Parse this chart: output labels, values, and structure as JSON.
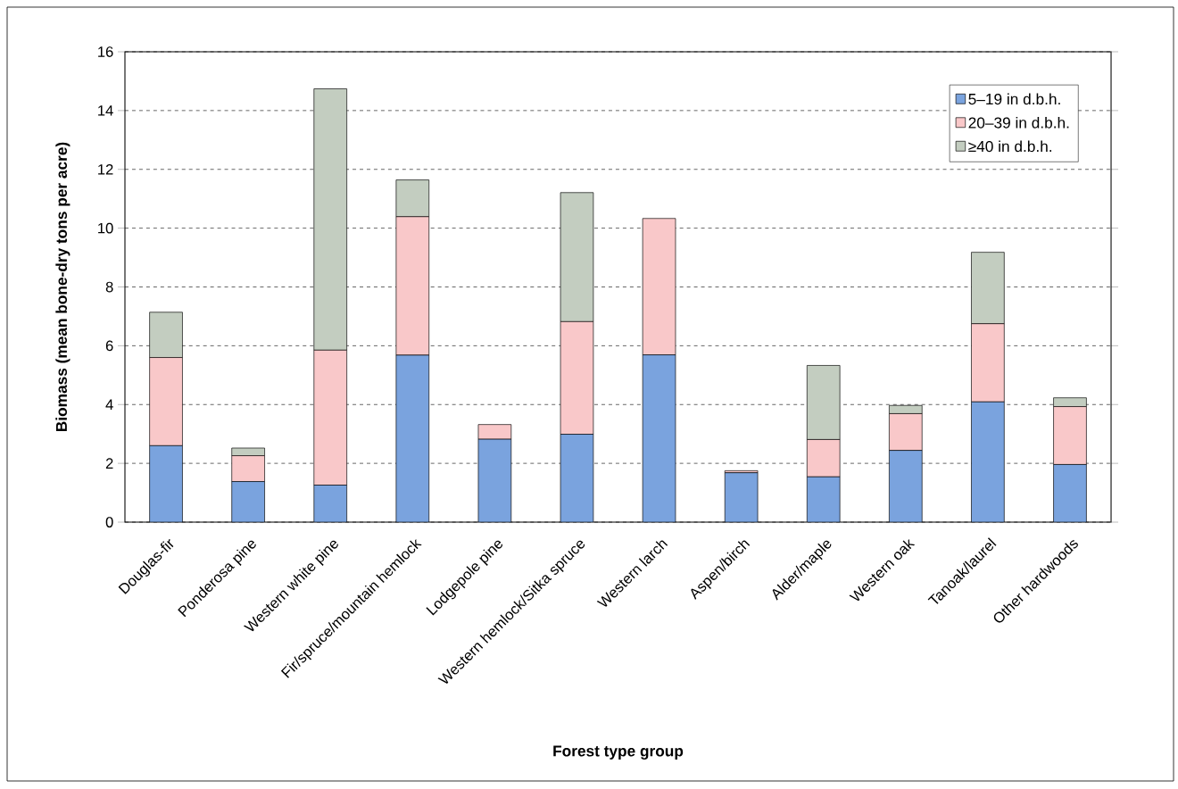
{
  "chart_data": {
    "type": "bar",
    "stacked": true,
    "xlabel": "Forest type group",
    "ylabel": "Biomass (mean bone-dry tons per acre)",
    "categories": [
      "Douglas-fir",
      "Ponderosa pine",
      "Western white pine",
      "Fir/spruce/mountain hemlock",
      "Lodgepole pine",
      "Western hemlock/Sitka spruce",
      "Western larch",
      "Aspen/birch",
      "Alder/maple",
      "Western oak",
      "Tanoak/laurel",
      "Other hardwoods"
    ],
    "series": [
      {
        "name": "5–19 in d.b.h.",
        "color": "#7aa3de",
        "values": [
          2.6,
          1.38,
          1.26,
          5.68,
          2.82,
          2.99,
          5.69,
          1.68,
          1.54,
          2.44,
          4.09,
          1.96
        ]
      },
      {
        "name": "20–39 in d.b.h.",
        "color": "#f9c8c9",
        "values": [
          3.0,
          0.88,
          4.59,
          4.71,
          0.5,
          3.83,
          4.64,
          0.07,
          1.27,
          1.25,
          2.66,
          1.97
        ]
      },
      {
        "name": "≥40 in d.b.h.",
        "color": "#c3cdc0",
        "values": [
          1.54,
          0.26,
          8.89,
          1.25,
          0,
          4.39,
          0,
          0,
          2.52,
          0.28,
          2.43,
          0.3
        ]
      }
    ],
    "ylim": [
      0,
      16
    ],
    "yticks": [
      0,
      2,
      4,
      6,
      8,
      10,
      12,
      14,
      16
    ],
    "grid": "y",
    "legend": "top right"
  }
}
